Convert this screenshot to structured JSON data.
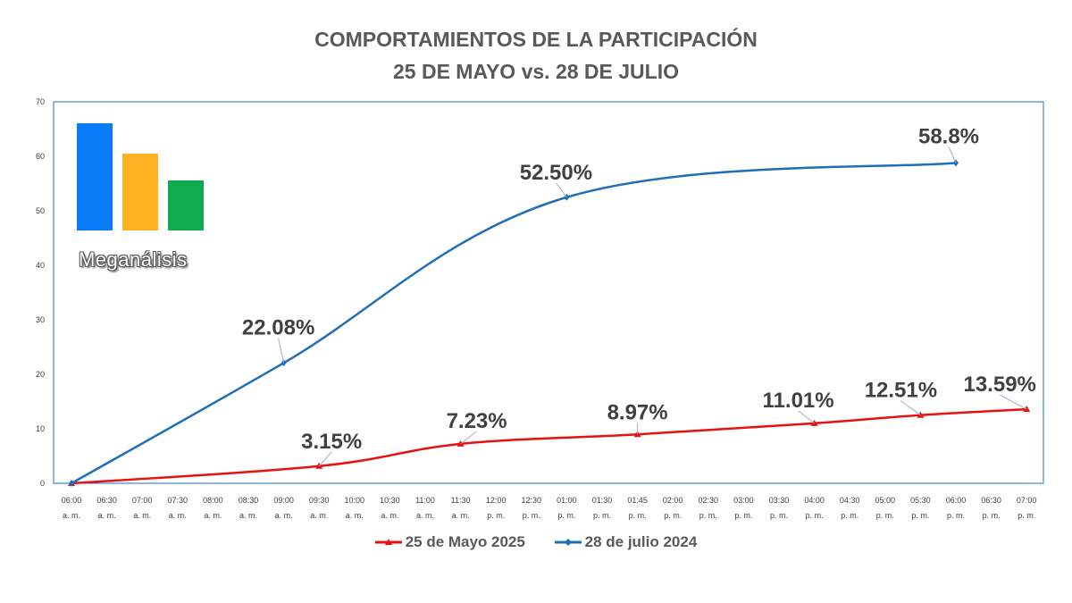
{
  "title_line1": "COMPORTAMIENTOS DE LA PARTICIPACIÓN",
  "title_line2": "25 DE MAYO vs. 28 DE JULIO",
  "logo": {
    "text": "Meganálisis",
    "colors": [
      "#0a7cf7",
      "#fdb022",
      "#0fac4f"
    ],
    "levels": [
      1.0,
      0.72,
      0.45
    ]
  },
  "chart_data": {
    "type": "line",
    "title": "COMPORTAMIENTOS DE LA PARTICIPACIÓN 25 DE MAYO vs. 28 DE JULIO",
    "xlabel": "",
    "ylabel": "",
    "ylim": [
      0,
      70
    ],
    "yticks": [
      0,
      10,
      20,
      30,
      40,
      50,
      60,
      70
    ],
    "grid": false,
    "legend_position": "bottom",
    "categories": [
      [
        "06:00",
        "a. m."
      ],
      [
        "06:30",
        "a. m."
      ],
      [
        "07:00",
        "a. m."
      ],
      [
        "07:30",
        "a. m."
      ],
      [
        "08:00",
        "a. m."
      ],
      [
        "08:30",
        "a. m."
      ],
      [
        "09:00",
        "a. m."
      ],
      [
        "09:30",
        "a. m."
      ],
      [
        "10:00",
        "a. m."
      ],
      [
        "10:30",
        "a. m."
      ],
      [
        "11:00",
        "a. m."
      ],
      [
        "11:30",
        "a. m."
      ],
      [
        "12:00",
        "p. m."
      ],
      [
        "12:30",
        "p. m."
      ],
      [
        "01:00",
        "p. m."
      ],
      [
        "01:30",
        "p. m."
      ],
      [
        "01:45",
        "p. m."
      ],
      [
        "02:00",
        "p. m."
      ],
      [
        "02:30",
        "p. m."
      ],
      [
        "03:00",
        "p. m."
      ],
      [
        "03:30",
        "p. m."
      ],
      [
        "04:00",
        "p. m."
      ],
      [
        "04:30",
        "p. m."
      ],
      [
        "05:00",
        "p. m."
      ],
      [
        "05:30",
        "p. m."
      ],
      [
        "06:00",
        "p. m."
      ],
      [
        "06:30",
        "p. m."
      ],
      [
        "07:00",
        "p. m."
      ]
    ],
    "series": [
      {
        "name": "25 de Mayo 2025",
        "color": "#e81010",
        "marker": "triangle",
        "points": [
          {
            "i": 0,
            "y": 0
          },
          {
            "i": 7,
            "y": 3.15,
            "label": "3.15%"
          },
          {
            "i": 11,
            "y": 7.23,
            "label": "7.23%"
          },
          {
            "i": 16,
            "y": 8.97,
            "label": "8.97%"
          },
          {
            "i": 21,
            "y": 11.01,
            "label": "11.01%"
          },
          {
            "i": 24,
            "y": 12.51,
            "label": "12.51%"
          },
          {
            "i": 27,
            "y": 13.59,
            "label": "13.59%"
          }
        ]
      },
      {
        "name": "28 de julio 2024",
        "color": "#1f6fb8",
        "marker": "diamond",
        "points": [
          {
            "i": 0,
            "y": 0
          },
          {
            "i": 6,
            "y": 22.08,
            "label": "22.08%"
          },
          {
            "i": 14,
            "y": 52.5,
            "label": "52.50%"
          },
          {
            "i": 25,
            "y": 58.8,
            "label": "58.8%"
          }
        ]
      }
    ]
  }
}
